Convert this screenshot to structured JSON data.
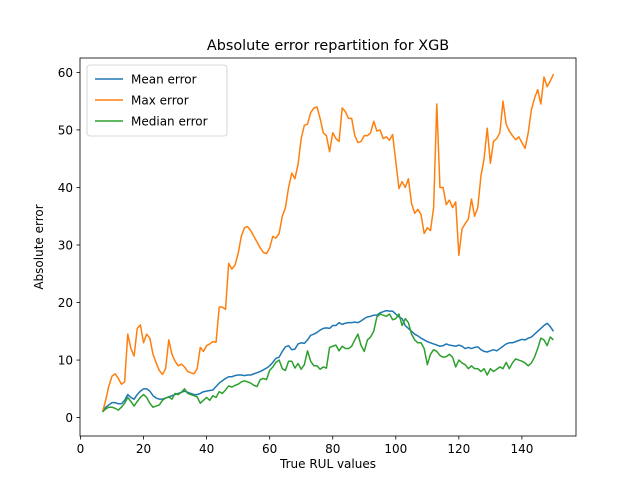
{
  "chart_data": {
    "type": "line",
    "title": "Absolute error repartition for XGB",
    "x_label": "True RUL values",
    "y_label": "Absolute error",
    "x": [
      7,
      8,
      9,
      10,
      11,
      12,
      13,
      14,
      15,
      16,
      17,
      18,
      19,
      20,
      21,
      22,
      23,
      24,
      25,
      26,
      27,
      28,
      29,
      30,
      31,
      32,
      33,
      34,
      35,
      36,
      37,
      38,
      39,
      40,
      41,
      42,
      43,
      44,
      45,
      46,
      47,
      48,
      49,
      50,
      51,
      52,
      53,
      54,
      55,
      56,
      57,
      58,
      59,
      60,
      61,
      62,
      63,
      64,
      65,
      66,
      67,
      68,
      69,
      70,
      71,
      72,
      73,
      74,
      75,
      76,
      77,
      78,
      79,
      80,
      81,
      82,
      83,
      84,
      85,
      86,
      87,
      88,
      89,
      90,
      91,
      92,
      93,
      94,
      95,
      96,
      97,
      98,
      99,
      100,
      101,
      102,
      103,
      104,
      105,
      106,
      107,
      108,
      109,
      110,
      111,
      112,
      113,
      114,
      115,
      116,
      117,
      118,
      119,
      120,
      121,
      122,
      123,
      124,
      125,
      126,
      127,
      128,
      129,
      130,
      131,
      132,
      133,
      134,
      135,
      136,
      137,
      138,
      139,
      140,
      141,
      142,
      143,
      144,
      145,
      146,
      147,
      148,
      149,
      150
    ],
    "series": [
      {
        "name": "Mean error",
        "color": "#1f77b4",
        "values": [
          1,
          1.8,
          2.2,
          2.6,
          2.6,
          2.4,
          2.4,
          3,
          4,
          3.5,
          3.2,
          4,
          4.6,
          5,
          5,
          4.6,
          3.8,
          3.4,
          3.2,
          3.2,
          3.4,
          3.6,
          3.8,
          4,
          4.2,
          4.4,
          4.6,
          4.4,
          4.2,
          4,
          4,
          4.2,
          4.5,
          4.6,
          4.7,
          4.8,
          5.4,
          6,
          6.4,
          6.8,
          7.1,
          7.1,
          7.3,
          7.4,
          7.4,
          7.3,
          7.4,
          7.4,
          7.6,
          7.8,
          8,
          8.3,
          8.6,
          9,
          9.6,
          10.3,
          10.5,
          11.5,
          12.3,
          12.5,
          11.8,
          11.9,
          12.8,
          13,
          12.9,
          13.5,
          14.3,
          14.5,
          14.8,
          15.2,
          15.5,
          15.6,
          15.5,
          16,
          16,
          16.5,
          16.2,
          16.4,
          16.5,
          16.5,
          16.6,
          16.5,
          16.8,
          17.2,
          17.5,
          17.6,
          17.8,
          17.8,
          18.2,
          18.4,
          18.6,
          18.5,
          18.5,
          18,
          17.5,
          17.2,
          16,
          15.5,
          15,
          14.5,
          14.2,
          13.8,
          13.5,
          13.2,
          13,
          12.8,
          12.6,
          12.4,
          12.5,
          12.8,
          12.6,
          12.5,
          12.4,
          12.6,
          12.4,
          12,
          12.2,
          12,
          12.2,
          12.3,
          11.8,
          11.5,
          11.4,
          11.6,
          11.8,
          11.6,
          12,
          12.4,
          12.8,
          13,
          13,
          13.2,
          13.4,
          13.6,
          13.5,
          13.8,
          14,
          14.5,
          15,
          15.5,
          16,
          16.4,
          15.8,
          15
        ]
      },
      {
        "name": "Max error",
        "color": "#ff7f0e",
        "values": [
          1,
          3,
          5.5,
          7.2,
          7.6,
          6.8,
          5.8,
          6.2,
          14.5,
          12,
          10.7,
          15.5,
          16.1,
          13,
          14.5,
          13.8,
          11,
          9.5,
          8.2,
          7.5,
          8.5,
          13.5,
          11,
          9.8,
          9,
          9.3,
          8.8,
          8,
          7.8,
          7.6,
          8.5,
          12.2,
          11.5,
          12.5,
          12.8,
          13.2,
          13.1,
          19.2,
          19.2,
          18.8,
          26.8,
          25.8,
          26.5,
          28.5,
          31.5,
          33,
          33.2,
          32.5,
          31.5,
          30.5,
          29.5,
          28.7,
          28.5,
          29.5,
          31.5,
          31.2,
          32,
          35,
          36.5,
          40,
          42.5,
          41.5,
          44,
          48.5,
          50.8,
          51,
          53,
          53.8,
          54,
          52,
          49.5,
          49,
          46.2,
          49.5,
          48.5,
          48,
          53.8,
          53.2,
          52,
          52,
          49,
          47.8,
          48,
          49,
          49,
          49.5,
          51.5,
          49.8,
          50,
          48.5,
          48.8,
          48.2,
          49.2,
          44.5,
          39.8,
          41,
          40,
          41.5,
          37.2,
          35.5,
          36.2,
          35.3,
          32,
          33,
          32.5,
          36.5,
          54.5,
          40,
          40,
          37,
          37.8,
          36.5,
          37.5,
          28.2,
          32.8,
          33.7,
          34.5,
          38,
          35,
          36.5,
          42,
          45,
          50.3,
          44.2,
          48,
          48.5,
          49.5,
          55,
          51,
          49.8,
          49,
          48.3,
          48.8,
          47.8,
          46.8,
          49.5,
          53.5,
          55.5,
          57,
          54.5,
          59.2,
          57.5,
          58.5,
          59.7
        ]
      },
      {
        "name": "Median error",
        "color": "#2ca02c",
        "values": [
          1,
          1.5,
          1.8,
          1.8,
          1.6,
          1.3,
          1.8,
          2.5,
          3.5,
          2.8,
          2,
          2.8,
          3.5,
          4,
          3.5,
          2.5,
          1.8,
          2,
          2.2,
          3,
          3.4,
          3.6,
          3.2,
          4.2,
          4,
          4.4,
          5,
          4.2,
          4,
          3.8,
          3.6,
          2.5,
          3,
          3.5,
          3,
          3.8,
          3.5,
          4.5,
          4.2,
          4.8,
          5.5,
          5.3,
          5.6,
          5.8,
          6.2,
          6.4,
          6.2,
          6,
          5.6,
          5.4,
          6.6,
          6.8,
          6.6,
          8.2,
          8.8,
          9.6,
          10,
          8.5,
          8.2,
          9.8,
          9.8,
          8.6,
          9.4,
          8.4,
          9.2,
          11.6,
          9.8,
          9,
          9,
          8.4,
          8.8,
          8.6,
          12.2,
          12.4,
          12.6,
          11.6,
          12.4,
          12,
          12,
          12.4,
          13.5,
          14.5,
          12.5,
          11.5,
          13.5,
          14,
          15,
          17.5,
          18,
          17.8,
          17.6,
          18,
          17,
          17.2,
          18,
          16,
          17.2,
          16.5,
          14.5,
          13.5,
          13,
          13,
          12,
          9.2,
          11,
          11.8,
          11.5,
          10.8,
          10.5,
          10.6,
          11,
          10.5,
          8.8,
          10,
          9.5,
          9.2,
          8.5,
          9,
          8.5,
          8.5,
          8,
          8.5,
          7.4,
          8.5,
          8,
          8.4,
          8.8,
          8.5,
          9.6,
          8.5,
          9.5,
          10.2,
          10,
          9.8,
          9.5,
          9,
          9.5,
          10.5,
          12,
          13.8,
          13.5,
          12.5,
          14,
          13.5
        ]
      }
    ],
    "xlim": [
      -0.15,
      157.15
    ],
    "ylim": [
      -3.2,
      62.5
    ],
    "xticks": [
      0,
      20,
      40,
      60,
      80,
      100,
      120,
      140
    ],
    "yticks": [
      0,
      10,
      20,
      30,
      40,
      50,
      60
    ],
    "legend": "upper left"
  }
}
